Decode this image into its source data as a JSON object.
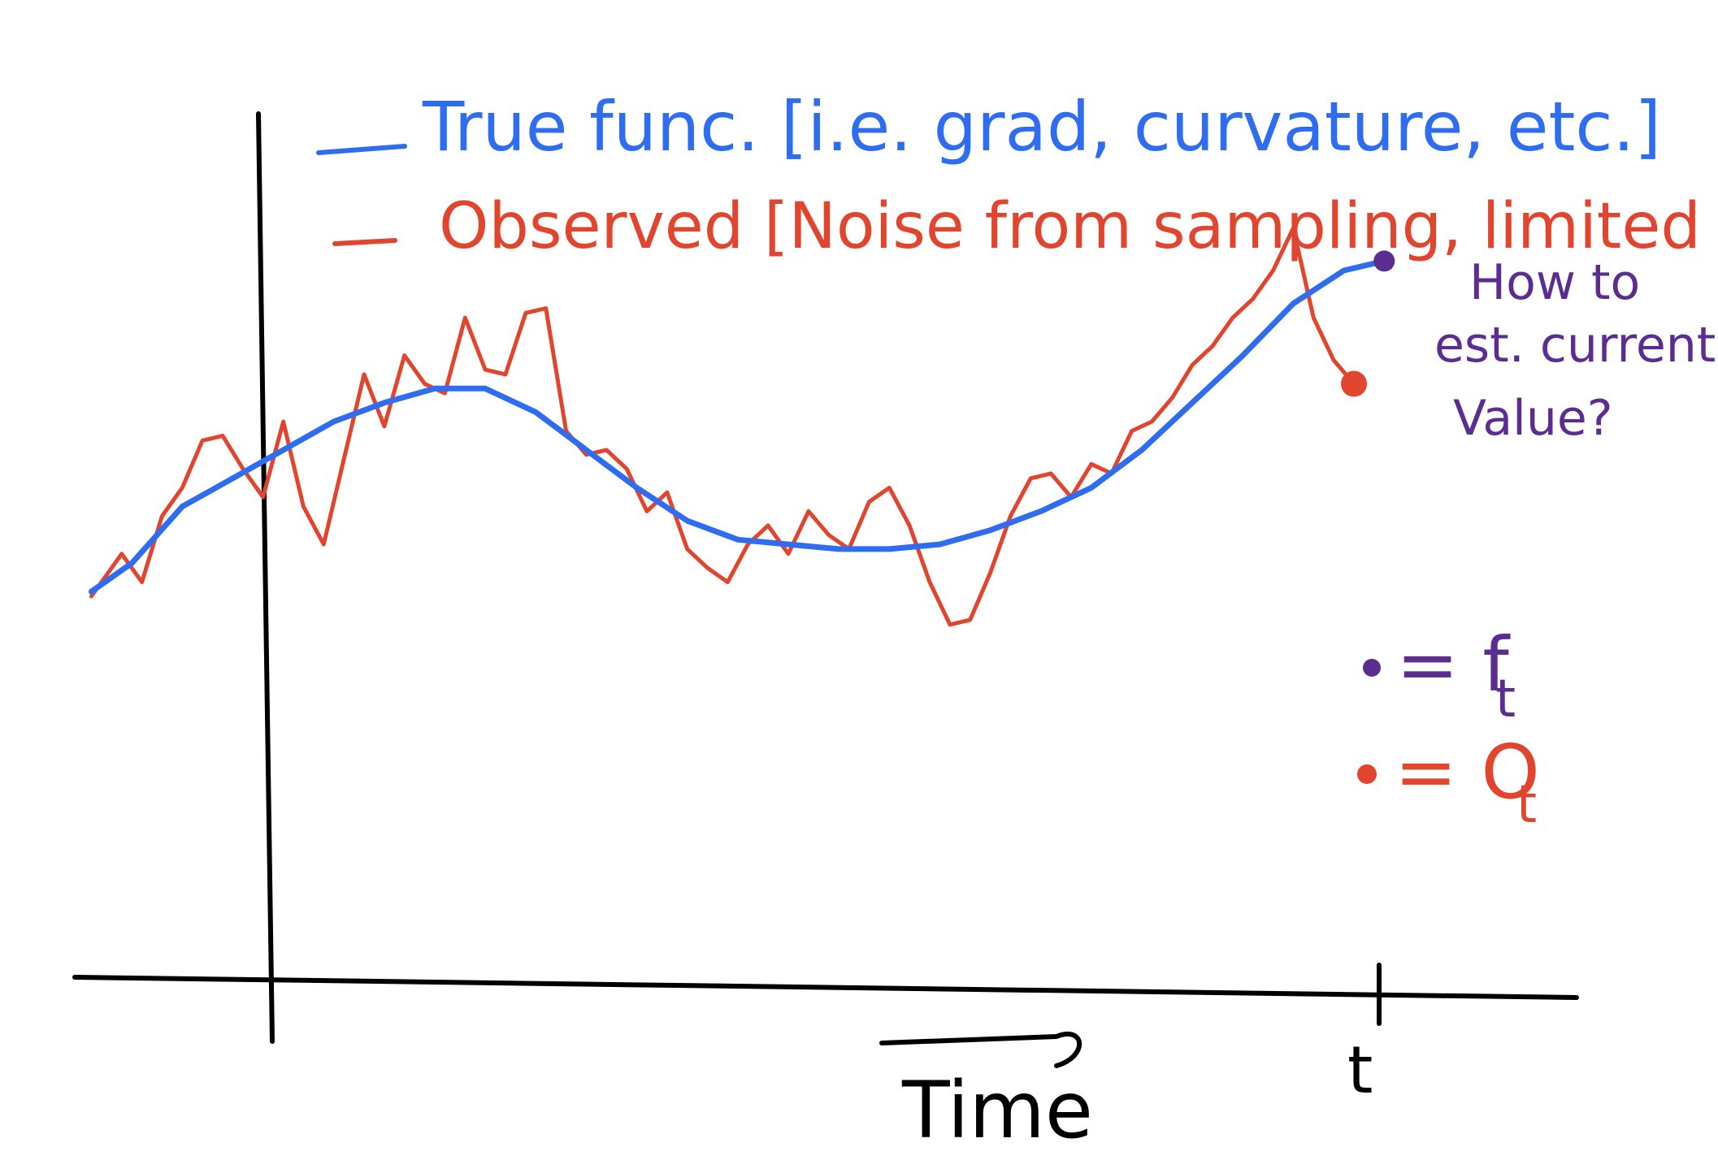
{
  "colors": {
    "true": "#2f6df0",
    "observed": "#e2452e",
    "note": "#5b2d91",
    "axis": "#000000"
  },
  "legend": {
    "true_label": "True func. [i.e. grad, curvature, etc.]",
    "observed_label": "Observed [Noise from sampling, limited obs.]"
  },
  "annotation": {
    "line1": "How to",
    "line2": "est. current",
    "line3": "Value?"
  },
  "key": {
    "f_label": "= f",
    "f_sub": "t",
    "o_label": "= O",
    "o_sub": "t"
  },
  "chart_data": {
    "type": "line",
    "title": "",
    "xlabel": "Time",
    "ylabel": "",
    "x_tick_label": "t",
    "grid": false,
    "legend": "top",
    "xlim": [
      -1,
      13
    ],
    "ylim": [
      -2,
      6
    ],
    "series": [
      {
        "name": "True func.",
        "x": [
          -0.9,
          -0.5,
          0,
          0.5,
          1,
          1.5,
          2,
          2.5,
          3,
          3.5,
          4,
          4.5,
          5,
          5.5,
          6,
          6.5,
          7,
          7.5,
          8,
          8.5,
          9,
          9.5,
          10,
          10.5,
          11,
          11.5,
          11.9
        ],
        "y": [
          1.8,
          2.1,
          2.7,
          3.0,
          3.3,
          3.6,
          3.8,
          3.95,
          3.95,
          3.7,
          3.3,
          2.9,
          2.55,
          2.35,
          2.3,
          2.25,
          2.25,
          2.3,
          2.45,
          2.65,
          2.9,
          3.3,
          3.8,
          4.3,
          4.85,
          5.2,
          5.3
        ]
      },
      {
        "name": "Observed",
        "x": [
          -0.9,
          -0.6,
          -0.4,
          -0.2,
          0,
          0.2,
          0.4,
          0.6,
          0.8,
          1.0,
          1.2,
          1.4,
          1.6,
          1.8,
          2.0,
          2.2,
          2.4,
          2.6,
          2.8,
          3.0,
          3.2,
          3.4,
          3.6,
          3.8,
          4.0,
          4.2,
          4.4,
          4.6,
          4.8,
          5.0,
          5.2,
          5.4,
          5.6,
          5.8,
          6.0,
          6.2,
          6.4,
          6.6,
          6.8,
          7.0,
          7.2,
          7.4,
          7.6,
          7.8,
          8.0,
          8.2,
          8.4,
          8.6,
          8.8,
          9.0,
          9.2,
          9.4,
          9.6,
          9.8,
          10.0,
          10.2,
          10.4,
          10.6,
          10.8,
          11.0,
          11.2,
          11.4,
          11.6
        ],
        "y": [
          1.75,
          2.2,
          1.9,
          2.6,
          2.9,
          3.4,
          3.45,
          3.1,
          2.8,
          3.6,
          2.7,
          2.3,
          3.2,
          4.1,
          3.55,
          4.3,
          4.0,
          3.9,
          4.7,
          4.15,
          4.1,
          4.75,
          4.8,
          3.5,
          3.25,
          3.3,
          3.1,
          2.65,
          2.85,
          2.25,
          2.05,
          1.9,
          2.3,
          2.5,
          2.2,
          2.65,
          2.4,
          2.25,
          2.75,
          2.9,
          2.5,
          1.9,
          1.45,
          1.5,
          2.0,
          2.6,
          3.0,
          3.05,
          2.8,
          3.15,
          3.05,
          3.5,
          3.6,
          3.85,
          4.2,
          4.4,
          4.7,
          4.9,
          5.2,
          5.65,
          4.7,
          4.25,
          4.0
        ]
      }
    ],
    "markers": [
      {
        "name": "f_t",
        "x": 11.9,
        "y": 5.3
      },
      {
        "name": "O_t",
        "x": 11.6,
        "y": 4.0
      }
    ]
  }
}
